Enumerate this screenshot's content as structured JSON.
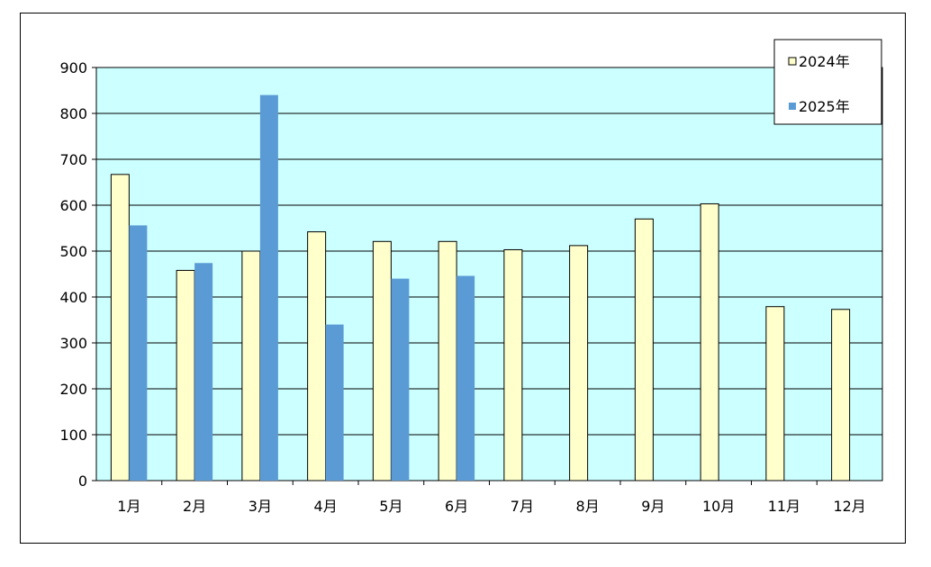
{
  "chart_data": {
    "type": "bar",
    "title": "",
    "xlabel": "",
    "ylabel": "",
    "ylim": [
      0,
      900
    ],
    "yticks": [
      0,
      100,
      200,
      300,
      400,
      500,
      600,
      700,
      800,
      900
    ],
    "grid": true,
    "legend_position": "top-right",
    "plot_background": "#ccffff",
    "categories": [
      "1月",
      "2月",
      "3月",
      "4月",
      "5月",
      "6月",
      "7月",
      "8月",
      "9月",
      "10月",
      "11月",
      "12月"
    ],
    "series": [
      {
        "name": "2024年",
        "color": "#ffffcc",
        "values": [
          667,
          458,
          500,
          542,
          521,
          521,
          503,
          512,
          570,
          603,
          379,
          373
        ]
      },
      {
        "name": "2025年",
        "color": "#5b9bd5",
        "values": [
          556,
          474,
          840,
          340,
          440,
          446,
          null,
          null,
          null,
          null,
          null,
          null
        ]
      }
    ]
  }
}
